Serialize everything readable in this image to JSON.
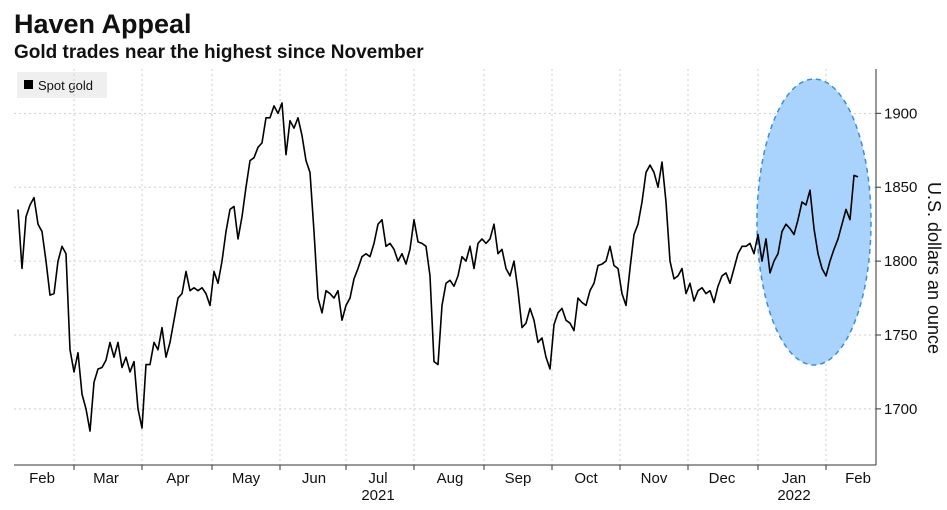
{
  "chart_data": {
    "type": "line",
    "title": "Haven Appeal",
    "subtitle": "Gold trades near the highest since November",
    "y_label": "U.S. dollars an ounce",
    "categories": [
      null,
      null,
      null,
      null,
      null,
      null,
      "Feb",
      null,
      null,
      null,
      null,
      null,
      null,
      null,
      null,
      null,
      null,
      null,
      null,
      null,
      null,
      null,
      "Mar",
      null,
      null,
      null,
      null,
      null,
      null,
      null,
      null,
      null,
      null,
      null,
      null,
      null,
      null,
      null,
      null,
      null,
      "Apr",
      null,
      null,
      null,
      null,
      null,
      null,
      null,
      null,
      null,
      null,
      null,
      null,
      null,
      null,
      null,
      null,
      "May",
      null,
      null,
      null,
      null,
      null,
      null,
      null,
      null,
      null,
      null,
      null,
      null,
      null,
      null,
      null,
      null,
      "Jun",
      null,
      null,
      null,
      null,
      null,
      null,
      null,
      null,
      null,
      null,
      null,
      null,
      null,
      null,
      null,
      "Jul",
      null,
      null,
      null,
      null,
      null,
      null,
      null,
      null,
      null,
      null,
      null,
      null,
      null,
      null,
      null,
      null,
      null,
      "Aug",
      null,
      null,
      null,
      null,
      null,
      null,
      null,
      null,
      null,
      null,
      null,
      null,
      null,
      null,
      null,
      null,
      "Sep",
      null,
      null,
      null,
      null,
      null,
      null,
      null,
      null,
      null,
      null,
      null,
      null,
      null,
      null,
      null,
      null,
      "Oct",
      null,
      null,
      null,
      null,
      null,
      null,
      null,
      null,
      null,
      null,
      null,
      null,
      null,
      null,
      null,
      null,
      "Nov",
      null,
      null,
      null,
      null,
      null,
      null,
      null,
      null,
      null,
      null,
      null,
      null,
      null,
      null,
      null,
      null,
      "Dec",
      null,
      null,
      null,
      null,
      null,
      null,
      null,
      null,
      null,
      null,
      null,
      null,
      null,
      null,
      null,
      null,
      null,
      "Jan",
      null,
      null,
      null,
      null,
      null,
      null,
      null,
      null,
      null,
      null,
      null,
      null,
      null,
      null,
      null,
      "Feb"
    ],
    "x_years": [
      {
        "value": 90,
        "label": "2021"
      },
      {
        "value": 194,
        "label": "2022"
      }
    ],
    "series": [
      {
        "name": "Spot gold",
        "color": "#000000",
        "values": [
          1835,
          1795,
          1830,
          1838,
          1843,
          1825,
          1820,
          1800,
          1777,
          1778,
          1800,
          1810,
          1805,
          1740,
          1725,
          1738,
          1710,
          1700,
          1685,
          1718,
          1727,
          1728,
          1733,
          1745,
          1735,
          1745,
          1728,
          1735,
          1725,
          1732,
          1700,
          1687,
          1730,
          1730,
          1745,
          1740,
          1755,
          1735,
          1745,
          1760,
          1775,
          1778,
          1793,
          1780,
          1782,
          1780,
          1782,
          1778,
          1770,
          1793,
          1785,
          1800,
          1820,
          1835,
          1837,
          1815,
          1830,
          1850,
          1868,
          1870,
          1877,
          1880,
          1897,
          1897,
          1905,
          1900,
          1907,
          1872,
          1895,
          1890,
          1897,
          1885,
          1868,
          1860,
          1820,
          1775,
          1765,
          1780,
          1778,
          1775,
          1780,
          1760,
          1770,
          1775,
          1788,
          1795,
          1803,
          1805,
          1803,
          1812,
          1825,
          1828,
          1810,
          1812,
          1808,
          1800,
          1805,
          1798,
          1808,
          1828,
          1813,
          1812,
          1810,
          1790,
          1732,
          1730,
          1770,
          1785,
          1787,
          1783,
          1790,
          1803,
          1800,
          1810,
          1795,
          1812,
          1815,
          1812,
          1815,
          1825,
          1805,
          1808,
          1795,
          1790,
          1800,
          1780,
          1755,
          1758,
          1768,
          1760,
          1745,
          1748,
          1735,
          1727,
          1757,
          1765,
          1768,
          1760,
          1758,
          1753,
          1775,
          1772,
          1770,
          1780,
          1785,
          1797,
          1798,
          1800,
          1810,
          1797,
          1795,
          1778,
          1770,
          1795,
          1818,
          1825,
          1840,
          1860,
          1865,
          1860,
          1850,
          1867,
          1840,
          1800,
          1788,
          1790,
          1795,
          1778,
          1785,
          1773,
          1780,
          1782,
          1778,
          1780,
          1772,
          1783,
          1790,
          1792,
          1785,
          1795,
          1805,
          1810,
          1810,
          1812,
          1805,
          1818,
          1800,
          1815,
          1792,
          1800,
          1805,
          1820,
          1825,
          1822,
          1818,
          1828,
          1840,
          1838,
          1848,
          1822,
          1805,
          1795,
          1790,
          1800,
          1808,
          1815,
          1825,
          1835,
          1828,
          1858,
          1857
        ]
      }
    ],
    "ylim": [
      1660,
      1930
    ],
    "yticks": [
      1700,
      1750,
      1800,
      1850,
      1900
    ],
    "grid": true
  }
}
